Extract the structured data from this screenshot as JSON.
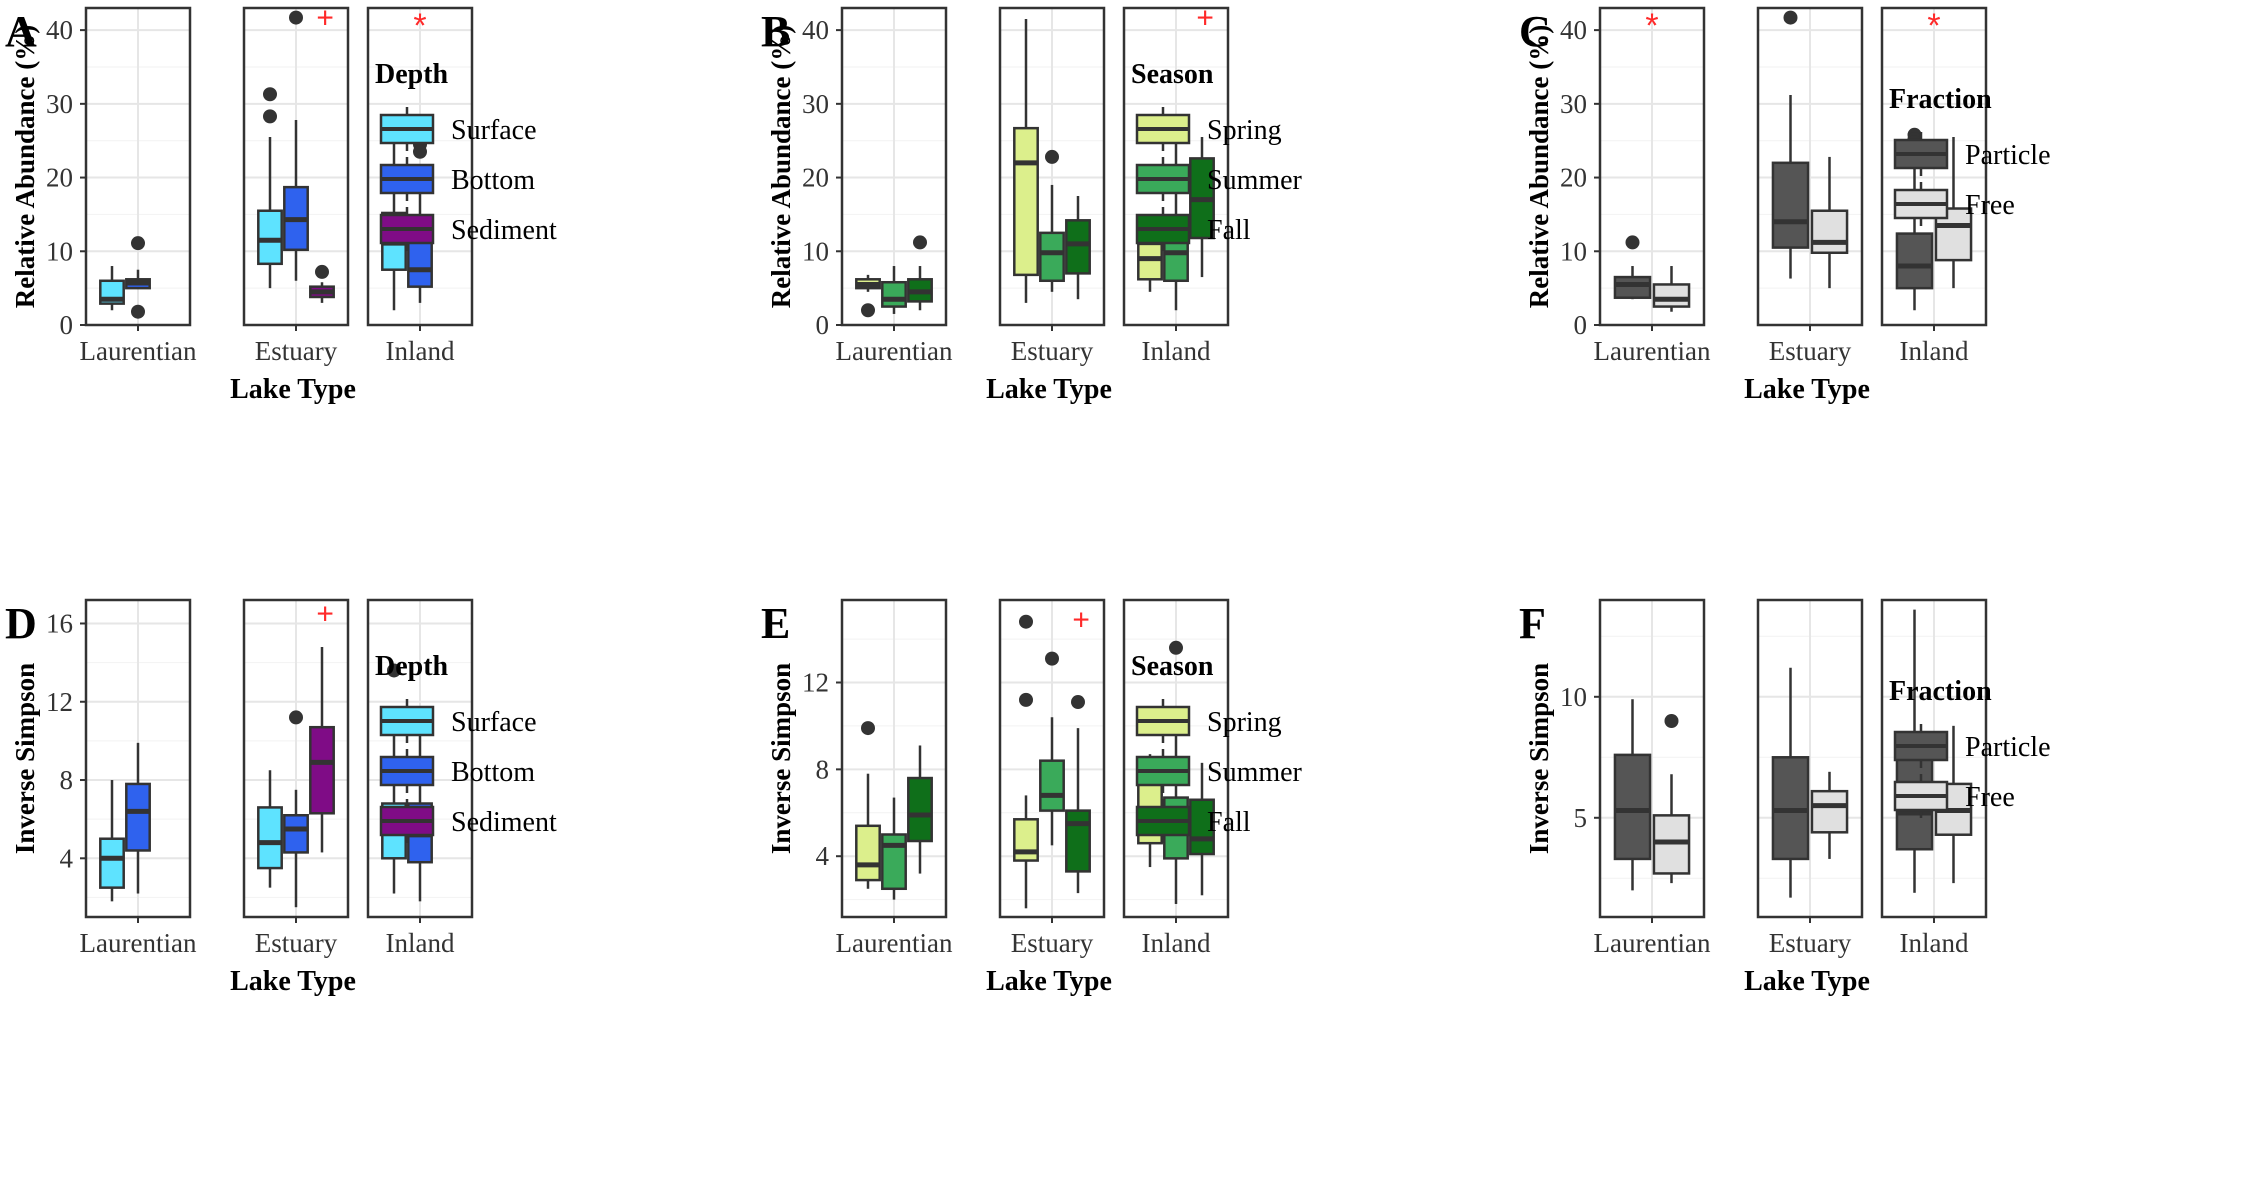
{
  "palettes": {
    "Depth": {
      "Surface": "#5ee3ff",
      "Bottom": "#2f62ee",
      "Sediment": "#7f0c86"
    },
    "Season": {
      "Spring": "#dcef8c",
      "Summer": "#3aaa5a",
      "Fall": "#0f6f1a"
    },
    "Fraction": {
      "Particle": "#555555",
      "Free": "#e0e0e0"
    }
  },
  "chart_data": [
    {
      "panel": "A",
      "type": "box",
      "xlabel": "Lake Type",
      "ylabel": "Relative Abundance (%)",
      "ylim": [
        0,
        43
      ],
      "yticks": [
        0,
        10,
        20,
        30,
        40
      ],
      "facets": [
        "Laurentian",
        "Estuary",
        "Inland"
      ],
      "legend": {
        "title": "Depth",
        "items": [
          "Surface",
          "Bottom",
          "Sediment"
        ]
      },
      "boxes": [
        {
          "facet": "Laurentian",
          "group": "Surface",
          "wmin": 2,
          "q1": 2.9,
          "median": 3.5,
          "q3": 6,
          "wmax": 8,
          "outliers": []
        },
        {
          "facet": "Laurentian",
          "group": "Bottom",
          "wmin": 5,
          "q1": 5,
          "median": 5.7,
          "q3": 6.2,
          "wmax": 7.5,
          "outliers": [
            11.1,
            1.8
          ]
        },
        {
          "facet": "Estuary",
          "group": "Surface",
          "wmin": 5,
          "q1": 8.3,
          "median": 11.5,
          "q3": 15.5,
          "wmax": 25.5,
          "outliers": [
            31.3,
            28.3
          ]
        },
        {
          "facet": "Estuary",
          "group": "Bottom",
          "wmin": 6,
          "q1": 10.2,
          "median": 14.3,
          "q3": 18.7,
          "wmax": 27.8,
          "outliers": [
            41.7
          ]
        },
        {
          "facet": "Estuary",
          "group": "Sediment",
          "wmin": 3,
          "q1": 3.8,
          "median": 4.5,
          "q3": 5.2,
          "wmax": 5.8,
          "outliers": [
            7.2
          ]
        },
        {
          "facet": "Inland",
          "group": "Surface",
          "wmin": 2,
          "q1": 7.5,
          "median": 11.1,
          "q3": 15.2,
          "wmax": 25.7,
          "outliers": []
        },
        {
          "facet": "Inland",
          "group": "Bottom",
          "wmin": 3,
          "q1": 5.2,
          "median": 7.5,
          "q3": 12.5,
          "wmax": 19.5,
          "outliers": [
            25.3,
            24.5,
            23.5
          ]
        }
      ],
      "annotations": [
        {
          "facet": "Estuary",
          "text": "+",
          "y": 41.7
        },
        {
          "facet": "Inland",
          "text": "*",
          "y": 41.5
        }
      ]
    },
    {
      "panel": "B",
      "type": "box",
      "xlabel": "Lake Type",
      "ylabel": "Relative Abundance (%)",
      "ylim": [
        0,
        43
      ],
      "yticks": [
        0,
        10,
        20,
        30,
        40
      ],
      "facets": [
        "Laurentian",
        "Estuary",
        "Inland"
      ],
      "legend": {
        "title": "Season",
        "items": [
          "Spring",
          "Summer",
          "Fall"
        ]
      },
      "boxes": [
        {
          "facet": "Laurentian",
          "group": "Spring",
          "wmin": 4.5,
          "q1": 5,
          "median": 5.5,
          "q3": 6.2,
          "wmax": 6.8,
          "outliers": [
            2
          ]
        },
        {
          "facet": "Laurentian",
          "group": "Summer",
          "wmin": 1.5,
          "q1": 2.5,
          "median": 3.5,
          "q3": 5.8,
          "wmax": 8,
          "outliers": []
        },
        {
          "facet": "Laurentian",
          "group": "Fall",
          "wmin": 2,
          "q1": 3.2,
          "median": 4.5,
          "q3": 6.2,
          "wmax": 8,
          "outliers": [
            11.2
          ]
        },
        {
          "facet": "Estuary",
          "group": "Spring",
          "wmin": 3,
          "q1": 6.8,
          "median": 22,
          "q3": 26.7,
          "wmax": 41.5,
          "outliers": []
        },
        {
          "facet": "Estuary",
          "group": "Summer",
          "wmin": 4.5,
          "q1": 6,
          "median": 9.8,
          "q3": 12.5,
          "wmax": 19,
          "outliers": [
            22.8
          ]
        },
        {
          "facet": "Estuary",
          "group": "Fall",
          "wmin": 3.5,
          "q1": 7,
          "median": 11,
          "q3": 14.2,
          "wmax": 17.5,
          "outliers": []
        },
        {
          "facet": "Inland",
          "group": "Spring",
          "wmin": 4.5,
          "q1": 6.2,
          "median": 9,
          "q3": 11,
          "wmax": 14.8,
          "outliers": []
        },
        {
          "facet": "Inland",
          "group": "Summer",
          "wmin": 2,
          "q1": 6,
          "median": 9.8,
          "q3": 14.5,
          "wmax": 25.8,
          "outliers": []
        },
        {
          "facet": "Inland",
          "group": "Fall",
          "wmin": 6.5,
          "q1": 11.8,
          "median": 17,
          "q3": 22.6,
          "wmax": 25.5,
          "outliers": []
        }
      ],
      "annotations": [
        {
          "facet": "Inland",
          "text": "+",
          "y": 41.7
        }
      ]
    },
    {
      "panel": "C",
      "type": "box",
      "xlabel": "Lake Type",
      "ylabel": "Relative Abundance (%)",
      "ylim": [
        0,
        43
      ],
      "yticks": [
        0,
        10,
        20,
        30,
        40
      ],
      "facets": [
        "Laurentian",
        "Estuary",
        "Inland"
      ],
      "legend": {
        "title": "Fraction",
        "items": [
          "Particle",
          "Free"
        ]
      },
      "boxes": [
        {
          "facet": "Laurentian",
          "group": "Particle",
          "wmin": 3.5,
          "q1": 3.7,
          "median": 5.5,
          "q3": 6.5,
          "wmax": 8,
          "outliers": [
            11.2
          ]
        },
        {
          "facet": "Laurentian",
          "group": "Free",
          "wmin": 1.8,
          "q1": 2.5,
          "median": 3.5,
          "q3": 5.5,
          "wmax": 8,
          "outliers": []
        },
        {
          "facet": "Estuary",
          "group": "Particle",
          "wmin": 6.3,
          "q1": 10.5,
          "median": 14,
          "q3": 22,
          "wmax": 31.2,
          "outliers": [
            41.7
          ]
        },
        {
          "facet": "Estuary",
          "group": "Free",
          "wmin": 5,
          "q1": 9.8,
          "median": 11.2,
          "q3": 15.5,
          "wmax": 22.8,
          "outliers": []
        },
        {
          "facet": "Inland",
          "group": "Particle",
          "wmin": 2,
          "q1": 5,
          "median": 8,
          "q3": 12.4,
          "wmax": 23.3,
          "outliers": [
            25.8,
            25.2,
            24.8
          ]
        },
        {
          "facet": "Inland",
          "group": "Free",
          "wmin": 5,
          "q1": 8.8,
          "median": 13.5,
          "q3": 15.8,
          "wmax": 25.5,
          "outliers": []
        }
      ],
      "annotations": [
        {
          "facet": "Laurentian",
          "text": "*",
          "y": 41.5
        },
        {
          "facet": "Inland",
          "text": "*",
          "y": 41.5
        }
      ]
    },
    {
      "panel": "D",
      "type": "box",
      "xlabel": "Lake Type",
      "ylabel": "Inverse Simpson",
      "ylim": [
        1,
        17.2
      ],
      "yticks": [
        4,
        8,
        12,
        16
      ],
      "facets": [
        "Laurentian",
        "Estuary",
        "Inland"
      ],
      "legend": {
        "title": "Depth",
        "items": [
          "Surface",
          "Bottom",
          "Sediment"
        ]
      },
      "boxes": [
        {
          "facet": "Laurentian",
          "group": "Surface",
          "wmin": 1.8,
          "q1": 2.5,
          "median": 4,
          "q3": 5,
          "wmax": 8,
          "outliers": []
        },
        {
          "facet": "Laurentian",
          "group": "Bottom",
          "wmin": 2.2,
          "q1": 4.4,
          "median": 6.4,
          "q3": 7.8,
          "wmax": 9.9,
          "outliers": []
        },
        {
          "facet": "Estuary",
          "group": "Surface",
          "wmin": 2.5,
          "q1": 3.5,
          "median": 4.8,
          "q3": 6.6,
          "wmax": 8.5,
          "outliers": []
        },
        {
          "facet": "Estuary",
          "group": "Bottom",
          "wmin": 1.5,
          "q1": 4.3,
          "median": 5.5,
          "q3": 6.2,
          "wmax": 7.5,
          "outliers": [
            11.2
          ]
        },
        {
          "facet": "Estuary",
          "group": "Sediment",
          "wmin": 4.3,
          "q1": 6.3,
          "median": 8.9,
          "q3": 10.7,
          "wmax": 14.8,
          "outliers": []
        },
        {
          "facet": "Inland",
          "group": "Surface",
          "wmin": 2.2,
          "q1": 4,
          "median": 5.3,
          "q3": 6.8,
          "wmax": 10.5,
          "outliers": [
            13.6
          ]
        },
        {
          "facet": "Inland",
          "group": "Bottom",
          "wmin": 1.8,
          "q1": 3.8,
          "median": 5.2,
          "q3": 6.8,
          "wmax": 10.8,
          "outliers": []
        }
      ],
      "annotations": [
        {
          "facet": "Estuary",
          "text": "+",
          "y": 16.5
        }
      ]
    },
    {
      "panel": "E",
      "type": "box",
      "xlabel": "Lake Type",
      "ylabel": "Inverse Simpson",
      "ylim": [
        1.2,
        15.8
      ],
      "yticks": [
        4,
        8,
        12
      ],
      "facets": [
        "Laurentian",
        "Estuary",
        "Inland"
      ],
      "legend": {
        "title": "Season",
        "items": [
          "Spring",
          "Summer",
          "Fall"
        ]
      },
      "boxes": [
        {
          "facet": "Laurentian",
          "group": "Spring",
          "wmin": 2.5,
          "q1": 2.9,
          "median": 3.6,
          "q3": 5.4,
          "wmax": 7.8,
          "outliers": [
            9.9
          ]
        },
        {
          "facet": "Laurentian",
          "group": "Summer",
          "wmin": 2,
          "q1": 2.5,
          "median": 4.5,
          "q3": 5,
          "wmax": 6.7,
          "outliers": []
        },
        {
          "facet": "Laurentian",
          "group": "Fall",
          "wmin": 3.2,
          "q1": 4.7,
          "median": 5.9,
          "q3": 7.6,
          "wmax": 9.1,
          "outliers": []
        },
        {
          "facet": "Estuary",
          "group": "Spring",
          "wmin": 1.6,
          "q1": 3.8,
          "median": 4.2,
          "q3": 5.7,
          "wmax": 6.8,
          "outliers": [
            14.8,
            11.2
          ]
        },
        {
          "facet": "Estuary",
          "group": "Summer",
          "wmin": 4.5,
          "q1": 6.1,
          "median": 6.8,
          "q3": 8.4,
          "wmax": 10.4,
          "outliers": [
            13.1
          ]
        },
        {
          "facet": "Estuary",
          "group": "Fall",
          "wmin": 2.3,
          "q1": 3.3,
          "median": 5.5,
          "q3": 6.1,
          "wmax": 9.9,
          "outliers": [
            11.1
          ]
        },
        {
          "facet": "Inland",
          "group": "Spring",
          "wmin": 3.5,
          "q1": 4.6,
          "median": 6.2,
          "q3": 8,
          "wmax": 8.7,
          "outliers": []
        },
        {
          "facet": "Inland",
          "group": "Summer",
          "wmin": 1.8,
          "q1": 3.9,
          "median": 5.3,
          "q3": 6.7,
          "wmax": 10.8,
          "outliers": [
            13.6
          ]
        },
        {
          "facet": "Inland",
          "group": "Fall",
          "wmin": 2.2,
          "q1": 4.1,
          "median": 4.8,
          "q3": 6.6,
          "wmax": 8.3,
          "outliers": []
        }
      ],
      "annotations": [
        {
          "facet": "Estuary",
          "text": "+",
          "y": 14.9
        }
      ]
    },
    {
      "panel": "F",
      "type": "box",
      "xlabel": "Lake Type",
      "ylabel": "Inverse Simpson",
      "ylim": [
        0.9,
        14
      ],
      "yticks": [
        5,
        10
      ],
      "facets": [
        "Laurentian",
        "Estuary",
        "Inland"
      ],
      "legend": {
        "title": "Fraction",
        "items": [
          "Particle",
          "Free"
        ]
      },
      "boxes": [
        {
          "facet": "Laurentian",
          "group": "Particle",
          "wmin": 2,
          "q1": 3.3,
          "median": 5.3,
          "q3": 7.6,
          "wmax": 9.9,
          "outliers": []
        },
        {
          "facet": "Laurentian",
          "group": "Free",
          "wmin": 2.3,
          "q1": 2.7,
          "median": 4,
          "q3": 5.1,
          "wmax": 6.8,
          "outliers": [
            9
          ]
        },
        {
          "facet": "Estuary",
          "group": "Particle",
          "wmin": 1.7,
          "q1": 3.3,
          "median": 5.3,
          "q3": 7.5,
          "wmax": 11.2,
          "outliers": []
        },
        {
          "facet": "Estuary",
          "group": "Free",
          "wmin": 3.3,
          "q1": 4.4,
          "median": 5.5,
          "q3": 6.1,
          "wmax": 6.9,
          "outliers": []
        },
        {
          "facet": "Inland",
          "group": "Particle",
          "wmin": 1.9,
          "q1": 3.7,
          "median": 5.2,
          "q3": 7.8,
          "wmax": 13.6,
          "outliers": []
        },
        {
          "facet": "Inland",
          "group": "Free",
          "wmin": 2.3,
          "q1": 4.3,
          "median": 5.3,
          "q3": 6.4,
          "wmax": 8.8,
          "outliers": []
        }
      ],
      "annotations": []
    }
  ]
}
